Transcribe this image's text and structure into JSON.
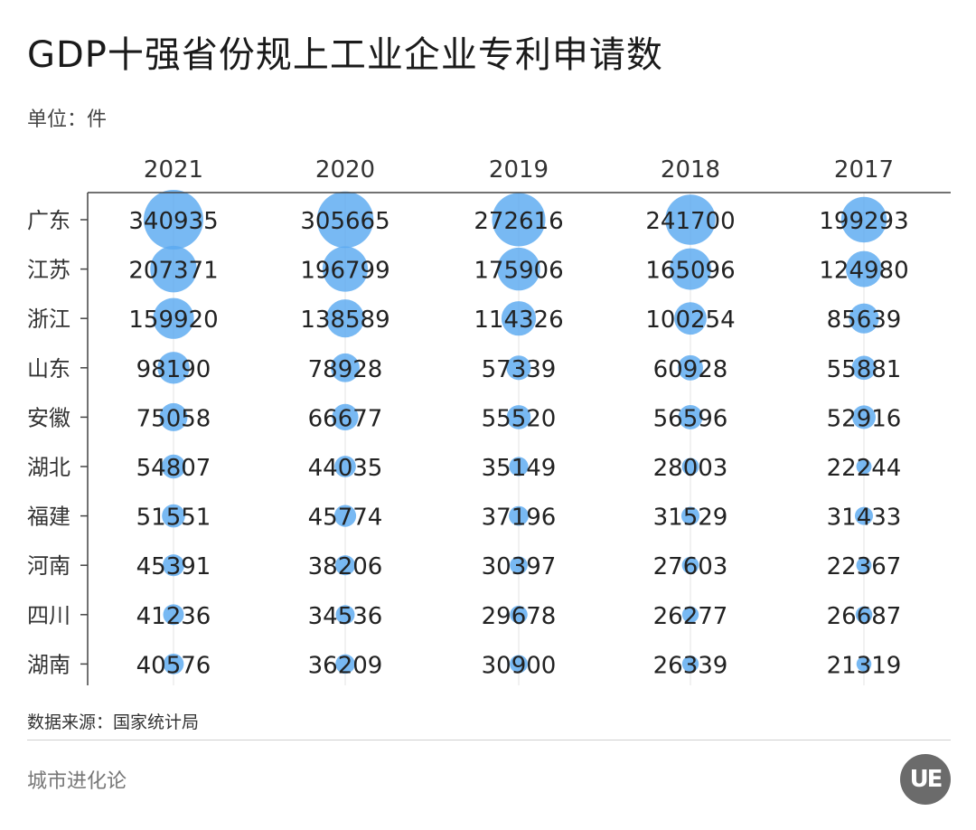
{
  "title": "GDP十强省份规上工业企业专利申请数",
  "unit_label": "单位：件",
  "source": "数据来源：国家统计局",
  "brand": "城市进化论",
  "logo_text": "UE",
  "colors": {
    "bubble": "#5aa9f0",
    "axis": "#444444",
    "text": "#222222"
  },
  "chart_data": {
    "type": "bubble-table",
    "years": [
      "2021",
      "2020",
      "2019",
      "2018",
      "2017"
    ],
    "provinces": [
      "广东",
      "江苏",
      "浙江",
      "山东",
      "安徽",
      "湖北",
      "福建",
      "河南",
      "四川",
      "湖南"
    ],
    "values": [
      [
        340935,
        305665,
        272616,
        241700,
        199293
      ],
      [
        207371,
        196799,
        175906,
        165096,
        124980
      ],
      [
        159920,
        138589,
        114326,
        100254,
        85639
      ],
      [
        98190,
        78928,
        57339,
        60928,
        55881
      ],
      [
        75058,
        66677,
        55520,
        56596,
        52916
      ],
      [
        54807,
        44035,
        35149,
        28003,
        22244
      ],
      [
        51551,
        45774,
        37196,
        31529,
        31433
      ],
      [
        45391,
        38206,
        30397,
        27603,
        22367
      ],
      [
        41236,
        34536,
        29678,
        26277,
        26687
      ],
      [
        40576,
        36209,
        30900,
        26339,
        21319
      ]
    ]
  }
}
